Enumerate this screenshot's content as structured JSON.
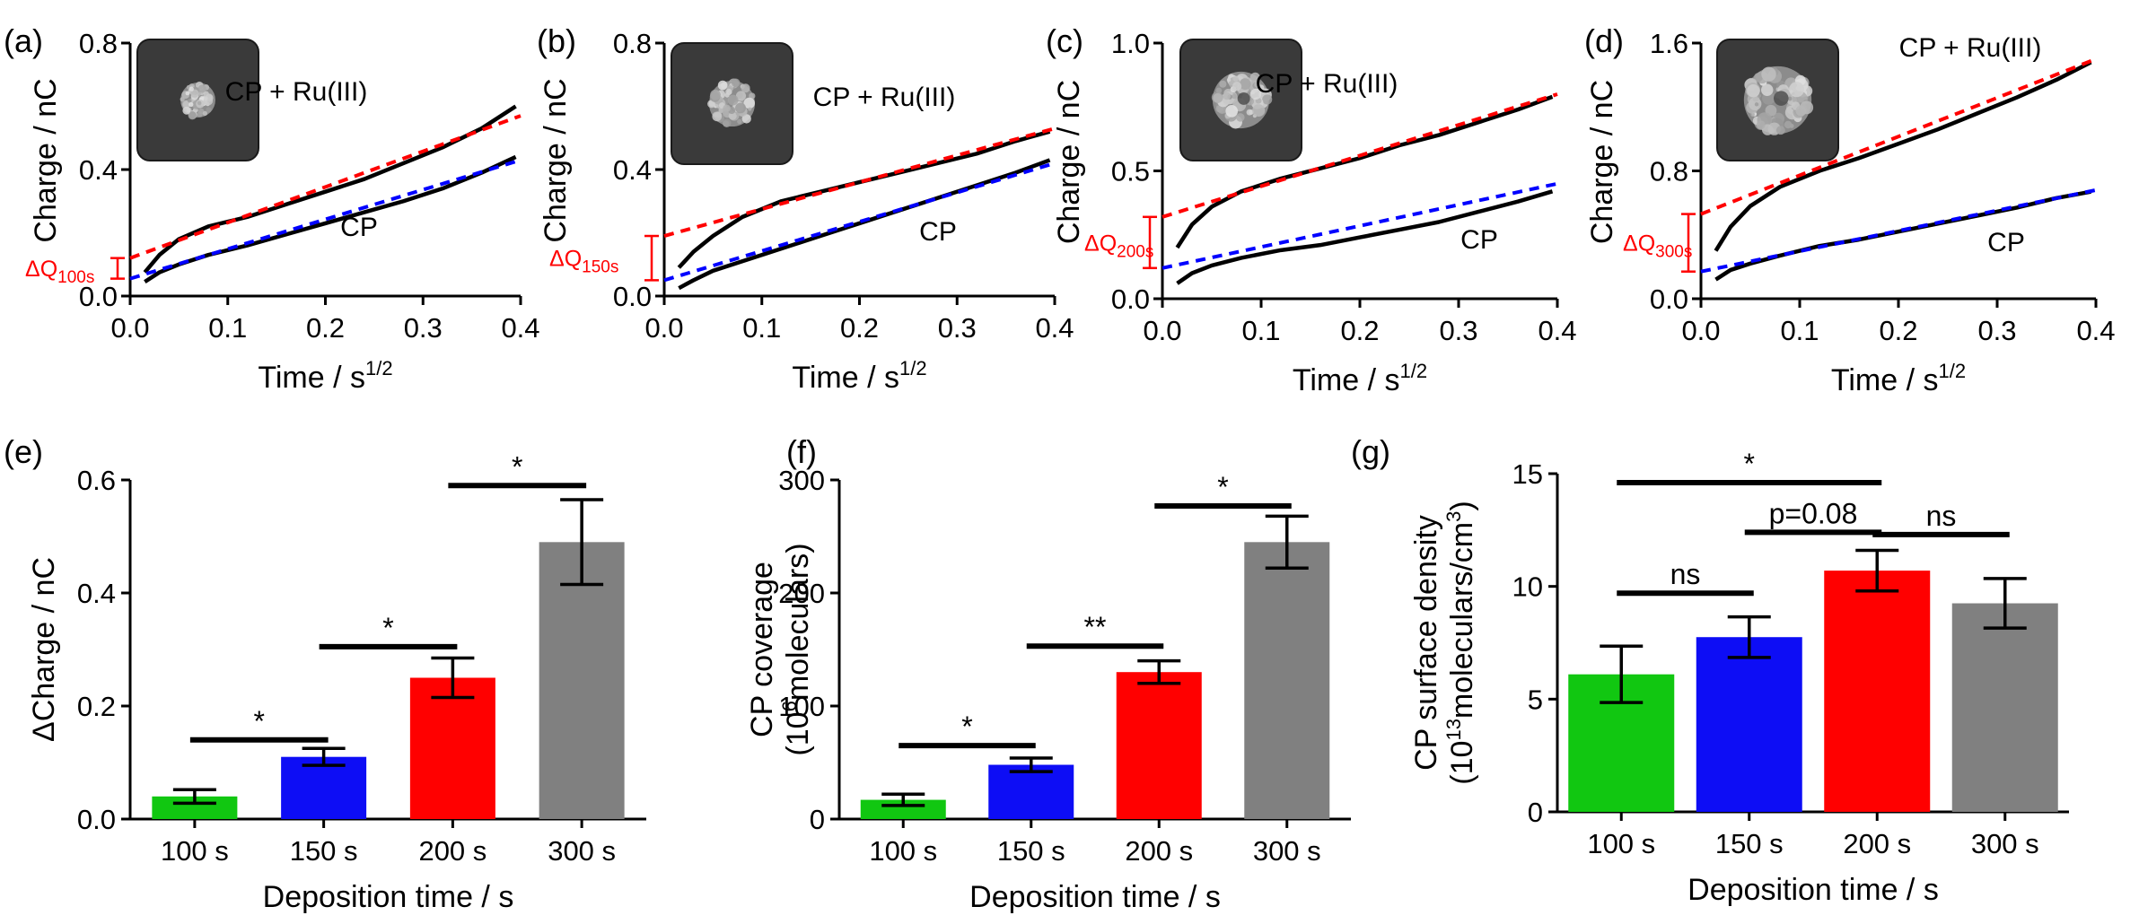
{
  "figure": {
    "colors": {
      "red": "#ff0000",
      "blue": "#0000ff",
      "black": "#000000",
      "bar_green": "#11c711",
      "bar_blue": "#0d0df5",
      "bar_red": "#ff0000",
      "bar_gray": "#808080",
      "inset_bg": "#3a3a3a"
    }
  },
  "chart_data": [
    {
      "panel": "(a)",
      "type": "line",
      "title": "",
      "xlabel": "Time / s",
      "xlabel_sup": "1/2",
      "ylabel": "Charge / nC",
      "xlim": [
        0,
        0.4
      ],
      "ylim": [
        0,
        0.8
      ],
      "xticks": [
        "0.0",
        "0.1",
        "0.2",
        "0.3",
        "0.4"
      ],
      "xtick_values": [
        0,
        0.1,
        0.2,
        0.3,
        0.4
      ],
      "yticks": [
        "0.0",
        "0.4",
        "0.8"
      ],
      "ytick_values": [
        0,
        0.4,
        0.8
      ],
      "series": [
        {
          "name": "CP + Ru(III)",
          "style": "solid",
          "x": [
            0.015,
            0.03,
            0.05,
            0.08,
            0.12,
            0.16,
            0.2,
            0.24,
            0.28,
            0.32,
            0.36,
            0.395
          ],
          "y": [
            0.075,
            0.13,
            0.18,
            0.22,
            0.25,
            0.29,
            0.33,
            0.37,
            0.42,
            0.47,
            0.53,
            0.6
          ]
        },
        {
          "name": "CP",
          "style": "solid",
          "x": [
            0.015,
            0.03,
            0.05,
            0.08,
            0.12,
            0.16,
            0.2,
            0.24,
            0.28,
            0.32,
            0.36,
            0.395
          ],
          "y": [
            0.045,
            0.075,
            0.1,
            0.13,
            0.16,
            0.195,
            0.23,
            0.265,
            0.3,
            0.34,
            0.39,
            0.44
          ]
        },
        {
          "name": "fit CP + Ru(III)",
          "style": "dashed",
          "color": "#ff0000",
          "x": [
            0,
            0.4
          ],
          "y": [
            0.12,
            0.57
          ]
        },
        {
          "name": "fit CP",
          "style": "dashed",
          "color": "#0000ff",
          "x": [
            0,
            0.4
          ],
          "y": [
            0.055,
            0.43
          ]
        }
      ],
      "delta_label": "ΔQ",
      "delta_sub": "100s",
      "delta_range": [
        0.055,
        0.12
      ],
      "series_labels": {
        "top": "CP + Ru(III)",
        "bottom": "CP"
      }
    },
    {
      "panel": "(b)",
      "type": "line",
      "title": "",
      "xlabel": "Time / s",
      "xlabel_sup": "1/2",
      "ylabel": "Charge / nC",
      "xlim": [
        0,
        0.4
      ],
      "ylim": [
        0,
        0.8
      ],
      "xticks": [
        "0.0",
        "0.1",
        "0.2",
        "0.3",
        "0.4"
      ],
      "xtick_values": [
        0,
        0.1,
        0.2,
        0.3,
        0.4
      ],
      "yticks": [
        "0.0",
        "0.4",
        "0.8"
      ],
      "ytick_values": [
        0,
        0.4,
        0.8
      ],
      "series": [
        {
          "name": "CP + Ru(III)",
          "style": "solid",
          "x": [
            0.015,
            0.03,
            0.05,
            0.08,
            0.12,
            0.16,
            0.2,
            0.24,
            0.28,
            0.32,
            0.36,
            0.395
          ],
          "y": [
            0.09,
            0.14,
            0.19,
            0.25,
            0.3,
            0.33,
            0.36,
            0.39,
            0.42,
            0.45,
            0.49,
            0.52
          ]
        },
        {
          "name": "CP",
          "style": "solid",
          "x": [
            0.015,
            0.03,
            0.05,
            0.08,
            0.12,
            0.16,
            0.2,
            0.24,
            0.28,
            0.32,
            0.36,
            0.395
          ],
          "y": [
            0.025,
            0.05,
            0.08,
            0.11,
            0.15,
            0.19,
            0.23,
            0.27,
            0.31,
            0.35,
            0.39,
            0.43
          ]
        },
        {
          "name": "fit CP + Ru(III)",
          "style": "dashed",
          "color": "#ff0000",
          "x": [
            0,
            0.4
          ],
          "y": [
            0.19,
            0.53
          ]
        },
        {
          "name": "fit CP",
          "style": "dashed",
          "color": "#0000ff",
          "x": [
            0,
            0.4
          ],
          "y": [
            0.05,
            0.42
          ]
        }
      ],
      "delta_label": "ΔQ",
      "delta_sub": "150s",
      "delta_range": [
        0.05,
        0.19
      ],
      "series_labels": {
        "top": "CP + Ru(III)",
        "bottom": "CP"
      }
    },
    {
      "panel": "(c)",
      "type": "line",
      "title": "",
      "xlabel": "Time / s",
      "xlabel_sup": "1/2",
      "ylabel": "Charge / nC",
      "xlim": [
        0,
        0.4
      ],
      "ylim": [
        0,
        1.0
      ],
      "xticks": [
        "0.0",
        "0.1",
        "0.2",
        "0.3",
        "0.4"
      ],
      "xtick_values": [
        0,
        0.1,
        0.2,
        0.3,
        0.4
      ],
      "yticks": [
        "0.0",
        "0.5",
        "1.0"
      ],
      "ytick_values": [
        0,
        0.5,
        1.0
      ],
      "series": [
        {
          "name": "CP + Ru(III)",
          "style": "solid",
          "x": [
            0.015,
            0.03,
            0.05,
            0.08,
            0.12,
            0.16,
            0.2,
            0.24,
            0.28,
            0.32,
            0.36,
            0.395
          ],
          "y": [
            0.2,
            0.29,
            0.36,
            0.42,
            0.47,
            0.51,
            0.55,
            0.6,
            0.64,
            0.69,
            0.74,
            0.79
          ]
        },
        {
          "name": "CP",
          "style": "solid",
          "x": [
            0.015,
            0.03,
            0.05,
            0.08,
            0.12,
            0.16,
            0.2,
            0.24,
            0.28,
            0.32,
            0.36,
            0.395
          ],
          "y": [
            0.06,
            0.1,
            0.13,
            0.16,
            0.19,
            0.21,
            0.24,
            0.27,
            0.3,
            0.34,
            0.38,
            0.42
          ]
        },
        {
          "name": "fit CP + Ru(III)",
          "style": "dashed",
          "color": "#ff0000",
          "x": [
            0,
            0.4
          ],
          "y": [
            0.32,
            0.8
          ]
        },
        {
          "name": "fit CP",
          "style": "dashed",
          "color": "#0000ff",
          "x": [
            0,
            0.4
          ],
          "y": [
            0.12,
            0.45
          ]
        }
      ],
      "delta_label": "ΔQ",
      "delta_sub": "200s",
      "delta_range": [
        0.12,
        0.32
      ],
      "series_labels": {
        "top": "CP + Ru(III)",
        "bottom": "CP"
      }
    },
    {
      "panel": "(d)",
      "type": "line",
      "title": "",
      "xlabel": "Time / s",
      "xlabel_sup": "1/2",
      "ylabel": "Charge / nC",
      "xlim": [
        0,
        0.4
      ],
      "ylim": [
        0,
        1.6
      ],
      "xticks": [
        "0.0",
        "0.1",
        "0.2",
        "0.3",
        "0.4"
      ],
      "xtick_values": [
        0,
        0.1,
        0.2,
        0.3,
        0.4
      ],
      "yticks": [
        "0.0",
        "0.8",
        "1.6"
      ],
      "ytick_values": [
        0,
        0.8,
        1.6
      ],
      "series": [
        {
          "name": "CP + Ru(III)",
          "style": "solid",
          "x": [
            0.015,
            0.03,
            0.05,
            0.08,
            0.12,
            0.16,
            0.2,
            0.24,
            0.28,
            0.32,
            0.36,
            0.395
          ],
          "y": [
            0.3,
            0.45,
            0.58,
            0.7,
            0.8,
            0.88,
            0.97,
            1.06,
            1.16,
            1.26,
            1.37,
            1.48
          ]
        },
        {
          "name": "CP",
          "style": "solid",
          "x": [
            0.015,
            0.03,
            0.05,
            0.08,
            0.12,
            0.16,
            0.2,
            0.24,
            0.28,
            0.32,
            0.36,
            0.395
          ],
          "y": [
            0.12,
            0.18,
            0.22,
            0.27,
            0.33,
            0.37,
            0.42,
            0.47,
            0.52,
            0.57,
            0.63,
            0.67
          ]
        },
        {
          "name": "fit CP + Ru(III)",
          "style": "dashed",
          "color": "#ff0000",
          "x": [
            0,
            0.4
          ],
          "y": [
            0.53,
            1.5
          ]
        },
        {
          "name": "fit CP",
          "style": "dashed",
          "color": "#0000ff",
          "x": [
            0,
            0.4
          ],
          "y": [
            0.17,
            0.68
          ]
        }
      ],
      "delta_label": "ΔQ",
      "delta_sub": "300s",
      "delta_range": [
        0.17,
        0.53
      ],
      "series_labels": {
        "top": "CP + Ru(III)",
        "bottom": "CP"
      }
    },
    {
      "panel": "(e)",
      "type": "bar",
      "title": "",
      "xlabel": "Deposition time / s",
      "ylabel": "ΔCharge / nC",
      "ylim": [
        0,
        0.6
      ],
      "yticks": [
        "0.0",
        "0.2",
        "0.4",
        "0.6"
      ],
      "ytick_values": [
        0,
        0.2,
        0.4,
        0.6
      ],
      "categories": [
        "100 s",
        "150 s",
        "200 s",
        "300 s"
      ],
      "values": [
        0.04,
        0.11,
        0.25,
        0.49
      ],
      "errors": [
        0.012,
        0.015,
        0.035,
        0.075
      ],
      "colors": [
        "#11c711",
        "#0d0df5",
        "#ff0000",
        "#808080"
      ],
      "significance": [
        {
          "from": 0,
          "to": 1,
          "y": 0.14,
          "label": "*"
        },
        {
          "from": 1,
          "to": 2,
          "y": 0.305,
          "label": "*"
        },
        {
          "from": 2,
          "to": 3,
          "y": 0.59,
          "label": "*"
        }
      ]
    },
    {
      "panel": "(f)",
      "type": "bar",
      "title": "",
      "xlabel": "Deposition time / s",
      "ylabel": "CP coverage",
      "ylabel_line2_pre": "(10",
      "ylabel_line2_sup": "6",
      "ylabel_line2_post": "moleculars)",
      "ylim": [
        0,
        300
      ],
      "yticks": [
        "0",
        "100",
        "200",
        "300"
      ],
      "ytick_values": [
        0,
        100,
        200,
        300
      ],
      "categories": [
        "100 s",
        "150 s",
        "200 s",
        "300 s"
      ],
      "values": [
        17,
        48,
        130,
        245
      ],
      "errors": [
        5,
        6,
        10,
        23
      ],
      "colors": [
        "#11c711",
        "#0d0df5",
        "#ff0000",
        "#808080"
      ],
      "significance": [
        {
          "from": 0,
          "to": 1,
          "y": 65,
          "label": "*"
        },
        {
          "from": 1,
          "to": 2,
          "y": 153,
          "label": "**"
        },
        {
          "from": 2,
          "to": 3,
          "y": 277,
          "label": "*"
        }
      ]
    },
    {
      "panel": "(g)",
      "type": "bar",
      "title": "",
      "xlabel": "Deposition time / s",
      "ylabel": "CP surface density",
      "ylabel_line2_pre": "(10",
      "ylabel_line2_sup": "13",
      "ylabel_line2_mid": "moleculars/cm",
      "ylabel_line2_sup2": "3",
      "ylabel_line2_post": ")",
      "ylim": [
        0,
        15
      ],
      "yticks": [
        "0",
        "5",
        "10",
        "15"
      ],
      "ytick_values": [
        0,
        5,
        10,
        15
      ],
      "categories": [
        "100 s",
        "150 s",
        "200 s",
        "300 s"
      ],
      "values": [
        6.1,
        7.75,
        10.7,
        9.25
      ],
      "errors": [
        1.25,
        0.9,
        0.9,
        1.1
      ],
      "colors": [
        "#11c711",
        "#0d0df5",
        "#ff0000",
        "#808080"
      ],
      "significance": [
        {
          "from": 0,
          "to": 1,
          "y": 9.7,
          "label": "ns"
        },
        {
          "from": 1,
          "to": 2,
          "y": 12.4,
          "label": "p=0.08"
        },
        {
          "from": 2,
          "to": 3,
          "y": 12.3,
          "label": "ns"
        },
        {
          "from": 0,
          "to": 2,
          "y": 14.6,
          "label": "*"
        }
      ]
    }
  ]
}
